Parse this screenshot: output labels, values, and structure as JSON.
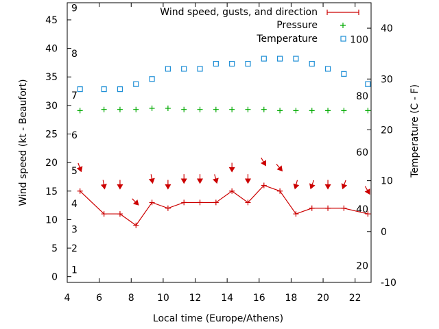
{
  "chart_data": {
    "type": "line",
    "xlabel": "Local time (Europe/Athens)",
    "ylabel": "Wind speed (kt - Beaufort)",
    "y2label": "Temperature (C - F)",
    "xlim": [
      4,
      23
    ],
    "ylim": [
      -1,
      48
    ],
    "y2lim": [
      -10,
      45
    ],
    "x_ticks": [
      "4",
      "6",
      "8",
      "10",
      "12",
      "14",
      "16",
      "18",
      "20",
      "22"
    ],
    "y_ticks": [
      "0",
      "5",
      "10",
      "15",
      "20",
      "25",
      "30",
      "35",
      "40",
      "45"
    ],
    "y2_ticks": [
      "-10",
      "0",
      "10",
      "20",
      "30",
      "40"
    ],
    "beaufort_scale": [
      {
        "label": "1",
        "kt": 1.2
      },
      {
        "label": "2",
        "kt": 5
      },
      {
        "label": "3",
        "kt": 8.3
      },
      {
        "label": "4",
        "kt": 12.8
      },
      {
        "label": "5",
        "kt": 18.6
      },
      {
        "label": "6",
        "kt": 24.8
      },
      {
        "label": "7",
        "kt": 31.8
      },
      {
        "label": "8",
        "kt": 39.1
      },
      {
        "label": "9",
        "kt": 47.1
      }
    ],
    "fahrenheit_scale": [
      {
        "label": "20",
        "c": -6.7
      },
      {
        "label": "40",
        "c": 4.4
      },
      {
        "label": "60",
        "c": 15.6
      },
      {
        "label": "80",
        "c": 26.7
      },
      {
        "label": "100",
        "c": 37.8
      }
    ],
    "legend_position": "top-right",
    "series": [
      {
        "name": "Wind speed, gusts, and direction",
        "axis": "left",
        "color": "#cc0000",
        "style": "line-with-plus-markers",
        "x": [
          4.8,
          6.3,
          7.3,
          8.3,
          9.3,
          10.3,
          11.3,
          12.3,
          13.3,
          14.3,
          15.3,
          16.3,
          17.3,
          18.3,
          19.3,
          20.3,
          21.3,
          22.8
        ],
        "y": [
          15,
          11,
          11,
          9,
          13,
          12,
          13,
          13,
          13,
          15,
          13,
          16,
          15,
          11,
          12,
          12,
          12,
          11
        ]
      },
      {
        "name": "Pressure",
        "axis": "none",
        "color": "#00aa00",
        "style": "plus-markers",
        "x": [
          4.8,
          6.3,
          7.3,
          8.3,
          9.3,
          10.3,
          11.3,
          12.3,
          13.3,
          14.3,
          15.3,
          16.3,
          17.3,
          18.3,
          19.3,
          20.3,
          21.3,
          22.8
        ],
        "y_relative": [
          29.1,
          29.3,
          29.3,
          29.3,
          29.5,
          29.5,
          29.3,
          29.3,
          29.3,
          29.3,
          29.3,
          29.3,
          29.1,
          29.1,
          29.1,
          29.1,
          29.1,
          29.1
        ]
      },
      {
        "name": "Temperature",
        "axis": "right",
        "color": "#1f8fd6",
        "style": "square-markers",
        "x": [
          4.8,
          6.3,
          7.3,
          8.3,
          9.3,
          10.3,
          11.3,
          12.3,
          13.3,
          14.3,
          15.3,
          16.3,
          17.3,
          18.3,
          19.3,
          20.3,
          21.3,
          22.8
        ],
        "y": [
          28,
          28,
          28,
          29,
          30,
          32,
          32,
          32,
          33,
          33,
          33,
          34,
          34,
          34,
          33,
          32,
          31,
          29
        ]
      }
    ],
    "gusts": {
      "color": "#cc0000",
      "x": [
        4.8,
        6.3,
        7.3,
        8.3,
        9.3,
        10.3,
        11.3,
        12.3,
        13.3,
        14.3,
        15.3,
        16.3,
        17.3,
        18.3,
        19.3,
        20.3,
        21.3,
        22.8
      ],
      "kt": [
        19,
        16,
        16,
        13,
        17,
        16,
        17,
        17,
        17,
        19,
        17,
        20,
        19,
        16,
        16,
        16,
        16,
        15
      ],
      "direction_deg": [
        340,
        350,
        0,
        315,
        350,
        0,
        0,
        0,
        345,
        0,
        0,
        330,
        320,
        15,
        20,
        0,
        20,
        330
      ]
    }
  }
}
